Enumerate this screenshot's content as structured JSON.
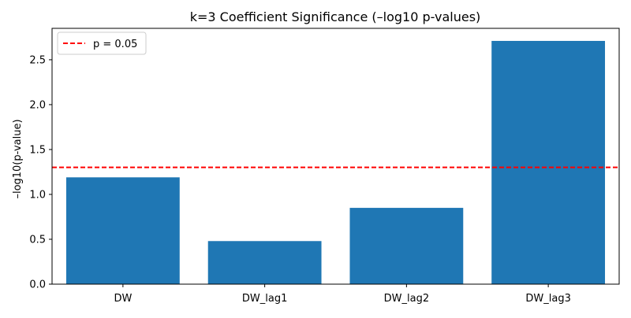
{
  "chart_data": {
    "type": "bar",
    "title": "k=3 Coefficient Significance (–log10 p-values)",
    "xlabel": "",
    "ylabel": "–log10(p-value)",
    "categories": [
      "DW",
      "DW_lag1",
      "DW_lag2",
      "DW_lag3"
    ],
    "values": [
      1.19,
      0.48,
      0.85,
      2.71
    ],
    "ylim": [
      0,
      2.85
    ],
    "yticks": [
      "0.0",
      "0.5",
      "1.0",
      "1.5",
      "2.0",
      "2.5"
    ],
    "bar_color": "#1f77b4",
    "grid": false,
    "reference_line": {
      "label": "p = 0.05",
      "value": 1.301,
      "color": "#ff0000",
      "style": "dashed"
    },
    "legend": {
      "placement": "upper-left",
      "entries": [
        "p = 0.05"
      ]
    }
  }
}
